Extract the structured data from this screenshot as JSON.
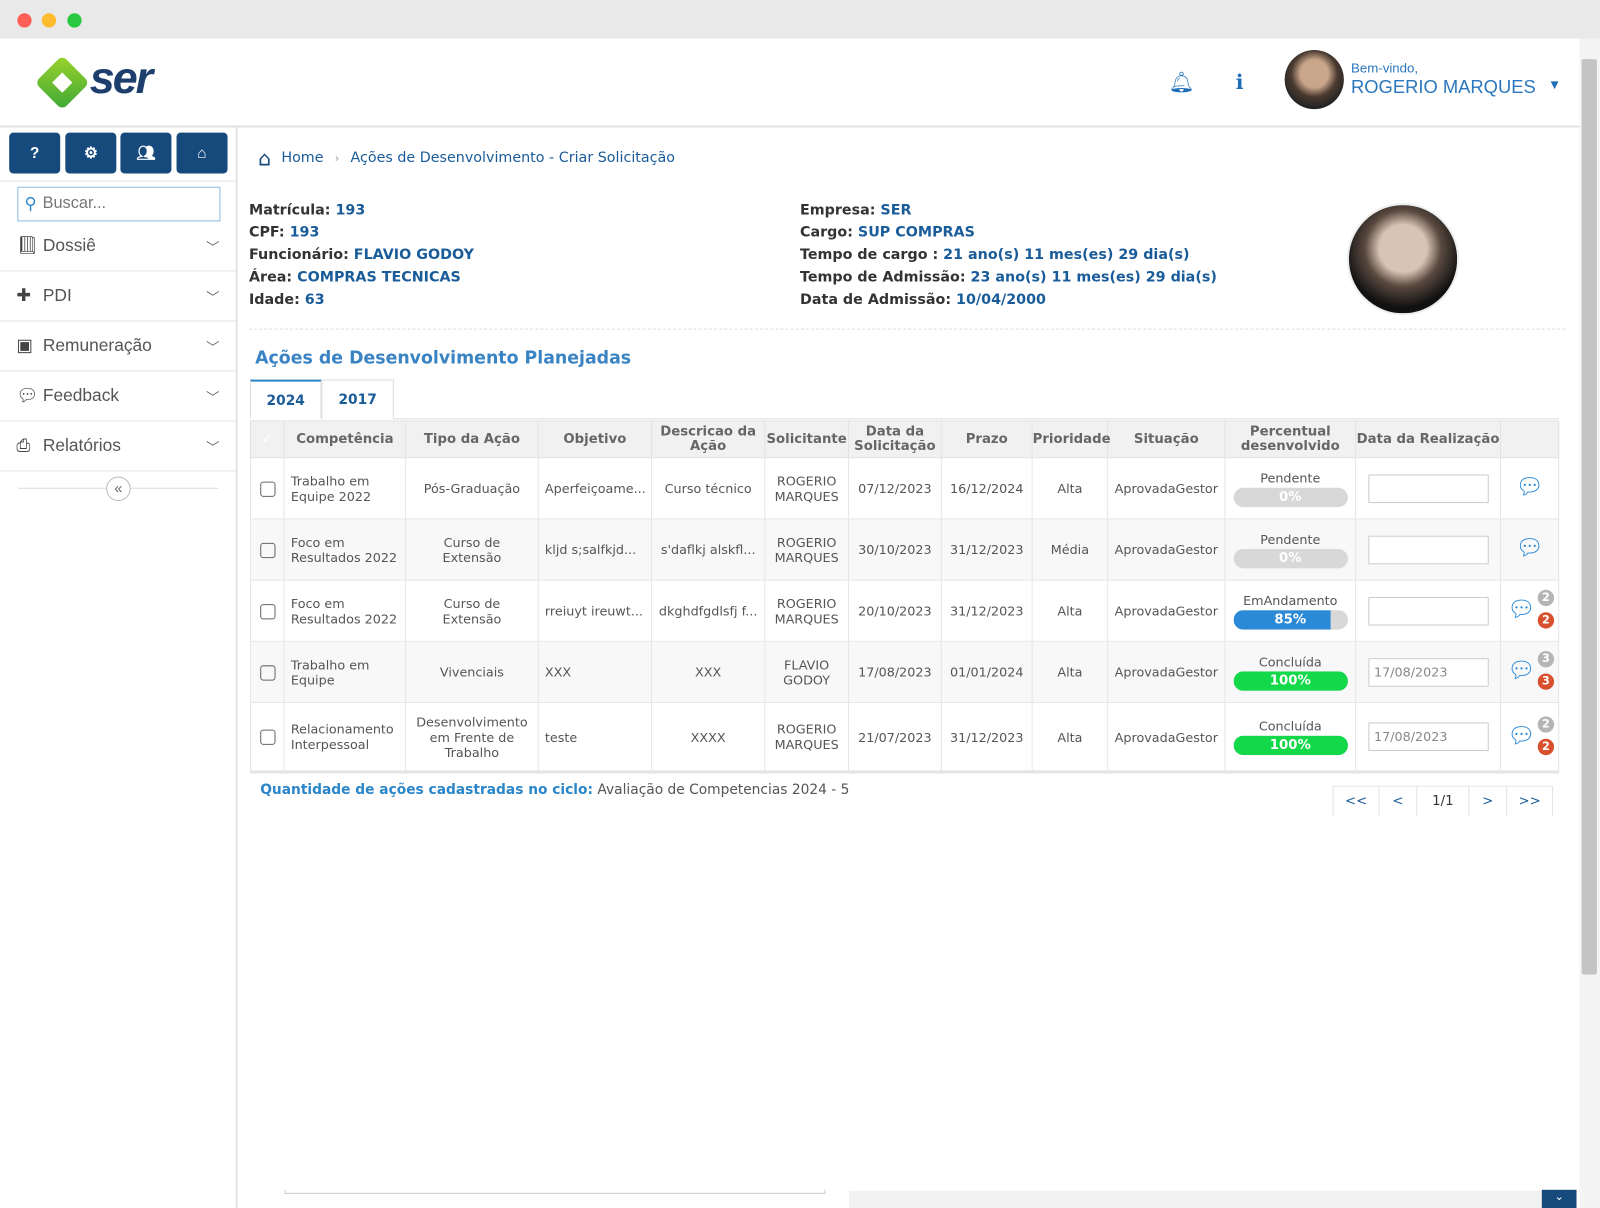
{
  "app": {
    "logo_text": "ser",
    "welcome": "Bem-vindo,",
    "user_name": "ROGERIO MARQUES"
  },
  "sidebar": {
    "search_placeholder": "Buscar...",
    "items": [
      {
        "label": "Dossiê",
        "icon": "book-icon"
      },
      {
        "label": "PDI",
        "icon": "puzzle-icon"
      },
      {
        "label": "Remuneração",
        "icon": "money-icon"
      },
      {
        "label": "Feedback",
        "icon": "comments-icon"
      },
      {
        "label": "Relatórios",
        "icon": "print-icon"
      }
    ]
  },
  "breadcrumb": {
    "home": "Home",
    "current": "Ações de Desenvolvimento - Criar Solicitação"
  },
  "employee": {
    "left": [
      {
        "label": "Matrícula:",
        "value": "193"
      },
      {
        "label": "CPF:",
        "value": "193"
      },
      {
        "label": "Funcionário:",
        "value": "FLAVIO GODOY"
      },
      {
        "label": "Área:",
        "value": "COMPRAS TECNICAS"
      },
      {
        "label": "Idade:",
        "value": "63"
      }
    ],
    "right": [
      {
        "label": "Empresa:",
        "value": "SER"
      },
      {
        "label": "Cargo:",
        "value": "SUP COMPRAS"
      },
      {
        "label": "Tempo de cargo :",
        "value": "21 ano(s) 11 mes(es) 29 dia(s)"
      },
      {
        "label": "Tempo de Admissão:",
        "value": "23 ano(s) 11 mes(es) 29 dia(s)"
      },
      {
        "label": "Data de Admissão:",
        "value": "10/04/2000"
      }
    ]
  },
  "section_title": "Ações de Desenvolvimento Planejadas",
  "tabs": [
    {
      "label": "2024",
      "active": true
    },
    {
      "label": "2017",
      "active": false
    }
  ],
  "table": {
    "headers": [
      "Competência",
      "Tipo da Ação",
      "Objetivo",
      "Descricao da Ação",
      "Solicitante",
      "Data da Solicitação",
      "Prazo",
      "Prioridade",
      "Situação",
      "Percentual desenvolvido",
      "Data da Realização"
    ],
    "rows": [
      {
        "competencia": "Trabalho em Equipe 2022",
        "tipo": "Pós-Graduação",
        "objetivo": "Aperfeiçoame...",
        "descricao": "Curso técnico",
        "solicitante": "ROGERIO MARQUES",
        "data_solicitacao": "07/12/2023",
        "prazo": "16/12/2024",
        "prioridade": "Alta",
        "situacao": "AprovadaGestor",
        "status": "Pendente",
        "percent": 0,
        "percent_label": "0%",
        "data_realizacao": "",
        "badge_gray": "",
        "badge_red": ""
      },
      {
        "competencia": "Foco em Resultados 2022",
        "tipo": "Curso de Extensão",
        "objetivo": "kljd s;salfkjd...",
        "descricao": "s'daflkj alskfl...",
        "solicitante": "ROGERIO MARQUES",
        "data_solicitacao": "30/10/2023",
        "prazo": "31/12/2023",
        "prioridade": "Média",
        "situacao": "AprovadaGestor",
        "status": "Pendente",
        "percent": 0,
        "percent_label": "0%",
        "data_realizacao": "",
        "badge_gray": "",
        "badge_red": ""
      },
      {
        "competencia": "Foco em Resultados 2022",
        "tipo": "Curso de Extensão",
        "objetivo": "rreiuyt ireuwt...",
        "descricao": "dkghdfgdlsfj f...",
        "solicitante": "ROGERIO MARQUES",
        "data_solicitacao": "20/10/2023",
        "prazo": "31/12/2023",
        "prioridade": "Alta",
        "situacao": "AprovadaGestor",
        "status": "EmAndamento",
        "percent": 85,
        "percent_label": "85%",
        "data_realizacao": "",
        "badge_gray": "2",
        "badge_red": "2"
      },
      {
        "competencia": "Trabalho em Equipe",
        "tipo": "Vivenciais",
        "objetivo": "XXX",
        "descricao": "XXX",
        "solicitante": "FLAVIO GODOY",
        "data_solicitacao": "17/08/2023",
        "prazo": "01/01/2024",
        "prioridade": "Alta",
        "situacao": "AprovadaGestor",
        "status": "Concluída",
        "percent": 100,
        "percent_label": "100%",
        "data_realizacao": "17/08/2023",
        "badge_gray": "3",
        "badge_red": "3"
      },
      {
        "competencia": "Relacionamento Interpessoal",
        "tipo": "Desenvolvimento em Frente de Trabalho",
        "objetivo": "teste",
        "descricao": "XXXX",
        "solicitante": "ROGERIO MARQUES",
        "data_solicitacao": "21/07/2023",
        "prazo": "31/12/2023",
        "prioridade": "Alta",
        "situacao": "AprovadaGestor",
        "status": "Concluída",
        "percent": 100,
        "percent_label": "100%",
        "data_realizacao": "17/08/2023",
        "badge_gray": "2",
        "badge_red": "2"
      }
    ]
  },
  "footer": {
    "label": "Quantidade de ações cadastradas no ciclo:",
    "value": "Avaliação de Competencias 2024 - 5"
  },
  "pagination": {
    "first": "<<",
    "prev": "<",
    "page": "1/1",
    "next": ">",
    "last": ">>"
  },
  "colors": {
    "primary": "#174a7c",
    "accent": "#2a8ad8",
    "progress_blue": "#2a8ad8",
    "progress_green": "#12d84a",
    "badge_red": "#d9502f",
    "badge_gray": "#b5b5b5"
  }
}
